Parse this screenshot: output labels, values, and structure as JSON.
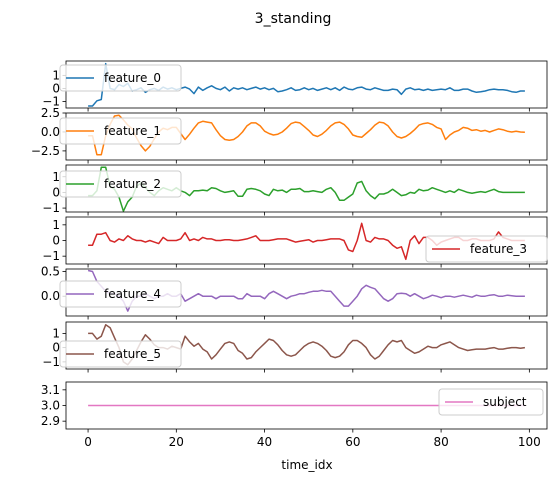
{
  "chart_data": {
    "type": "line",
    "title": "3_standing",
    "xlabel": "time_idx",
    "xlim": [
      -5,
      104
    ],
    "x_ticks": [
      0,
      20,
      40,
      60,
      80,
      100
    ],
    "x_tick_labels": [
      "0",
      "20",
      "40",
      "60",
      "80",
      "100"
    ],
    "subplots": [
      {
        "series": [
          {
            "name": "feature_0",
            "color": "#1f77b4",
            "values": [
              -1.35,
              -1.35,
              -0.95,
              -0.85,
              1.9,
              0.0,
              -0.1,
              0.3,
              0.15,
              0.4,
              -0.2,
              -0.1,
              0.05,
              -0.3,
              -0.1,
              0.0,
              -0.15,
              0.1,
              -0.05,
              0.05,
              -0.1,
              0.0,
              0.1,
              -0.05,
              -0.4,
              0.1,
              -0.15,
              0.05,
              0.2,
              0.0,
              -0.1,
              0.1,
              -0.2,
              0.05,
              -0.05,
              0.05,
              -0.1,
              0.0,
              0.1,
              -0.05,
              0.05,
              -0.1,
              0.0,
              -0.25,
              -0.2,
              -0.1,
              0.05,
              -0.15,
              -0.1,
              0.05,
              -0.1,
              0.0,
              -0.15,
              -0.05,
              0.05,
              -0.1,
              0.05,
              -0.15,
              0.1,
              -0.05,
              -0.1,
              0.05,
              0.1,
              -0.05,
              -0.1,
              0.05,
              -0.05,
              -0.15,
              -0.15,
              -0.05,
              -0.1,
              -0.45,
              -0.05,
              0.05,
              -0.1,
              -0.05,
              -0.15,
              -0.05,
              -0.15,
              -0.1,
              -0.05,
              -0.1,
              0.05,
              -0.15,
              -0.15,
              -0.05,
              -0.05,
              -0.2,
              -0.3,
              -0.25,
              -0.2,
              -0.1,
              -0.05,
              -0.1,
              -0.1,
              -0.15,
              -0.25,
              -0.3,
              -0.2,
              -0.2
            ]
          }
        ],
        "ylim": [
          -1.5,
          2.1
        ],
        "y_ticks": [
          -1,
          0,
          1
        ],
        "y_tick_labels": [
          "−1",
          "0",
          "1"
        ],
        "legend_loc": "upper left"
      },
      {
        "series": [
          {
            "name": "feature_1",
            "color": "#ff7f0e",
            "values": [
              -0.5,
              -0.5,
              -3.0,
              -3.0,
              -0.5,
              1.0,
              2.1,
              2.2,
              1.6,
              0.9,
              0.4,
              -0.8,
              -1.8,
              -2.5,
              -1.9,
              -0.9,
              0.0,
              0.5,
              0.3,
              0.6,
              0.6,
              -0.2,
              -1.0,
              -0.3,
              0.5,
              1.2,
              1.4,
              1.3,
              1.2,
              0.3,
              -0.5,
              -1.0,
              -1.1,
              -1.0,
              -0.6,
              0.0,
              0.8,
              1.2,
              1.2,
              0.8,
              0.1,
              -0.2,
              -0.4,
              -0.3,
              0.0,
              0.5,
              1.1,
              1.3,
              1.2,
              0.7,
              0.2,
              -0.4,
              -0.6,
              -0.3,
              0.2,
              0.8,
              1.2,
              1.3,
              1.0,
              0.4,
              -0.4,
              -0.6,
              -0.7,
              -0.2,
              0.3,
              0.9,
              1.3,
              1.2,
              0.8,
              0.0,
              -0.6,
              -0.8,
              -0.6,
              -0.2,
              0.3,
              0.9,
              1.1,
              1.2,
              1.0,
              0.6,
              0.4,
              -1.0,
              -0.4,
              0.0,
              0.2,
              0.6,
              0.5,
              0.2,
              0.3,
              0.1,
              0.2,
              0.0,
              0.2,
              0.4,
              0.3,
              0.1,
              0.0,
              0.1,
              0.0,
              -0.05
            ]
          }
        ],
        "ylim": [
          -3.7,
          2.5
        ],
        "y_ticks": [
          -2.5,
          0.0,
          2.5
        ],
        "y_tick_labels": [
          "−2.5",
          "0.0",
          "2.5"
        ],
        "legend_loc": "upper left"
      },
      {
        "series": [
          {
            "name": "feature_2",
            "color": "#2ca02c",
            "values": [
              -0.2,
              -0.2,
              0.1,
              1.6,
              1.6,
              0.4,
              0.2,
              -0.3,
              -1.2,
              -0.6,
              -0.3,
              0.4,
              0.6,
              0.3,
              0.0,
              -0.2,
              0.1,
              0.3,
              0.2,
              0.1,
              0.3,
              0.1,
              0.0,
              -0.2,
              0.1,
              0.1,
              0.15,
              0.1,
              0.3,
              0.25,
              0.1,
              0.0,
              0.05,
              0.1,
              -0.25,
              -0.25,
              0.2,
              0.25,
              0.2,
              0.1,
              -0.1,
              -0.2,
              0.2,
              0.1,
              0.15,
              0.0,
              0.2,
              0.2,
              0.25,
              0.05,
              0.05,
              0.1,
              0.05,
              0.0,
              0.2,
              0.3,
              0.0,
              -0.5,
              -0.5,
              -0.3,
              -0.1,
              0.6,
              0.7,
              0.1,
              -0.2,
              -0.4,
              -0.1,
              -0.1,
              0.0,
              0.2,
              0.0,
              -0.2,
              -0.15,
              0.0,
              -0.05,
              0.2,
              0.1,
              0.15,
              0.3,
              0.2,
              0.1,
              0.0,
              0.1,
              0.0,
              0.2,
              0.1,
              0.0,
              -0.05,
              0.0,
              0.05,
              0.0,
              0.1,
              0.2,
              0.05,
              0.0,
              0.0,
              0.0,
              0.0,
              0.0,
              0.0
            ]
          }
        ],
        "ylim": [
          -1.25,
          1.75
        ],
        "y_ticks": [
          -1,
          0,
          1
        ],
        "y_tick_labels": [
          "−1",
          "0",
          "1"
        ],
        "legend_loc": "upper left"
      },
      {
        "series": [
          {
            "name": "feature_3",
            "color": "#d62728",
            "values": [
              -0.3,
              -0.3,
              0.4,
              0.4,
              0.5,
              0.0,
              -0.1,
              0.1,
              0.0,
              0.3,
              0.1,
              0.0,
              0.0,
              -0.1,
              0.0,
              -0.1,
              -0.2,
              0.2,
              0.0,
              0.0,
              0.0,
              0.1,
              0.5,
              0.0,
              0.1,
              0.0,
              0.2,
              0.1,
              0.1,
              0.0,
              0.0,
              0.05,
              0.05,
              0.0,
              0.0,
              0.05,
              0.1,
              0.2,
              0.3,
              0.0,
              0.0,
              0.0,
              0.05,
              0.1,
              0.1,
              0.1,
              0.0,
              -0.1,
              -0.05,
              0.0,
              0.05,
              -0.1,
              0.0,
              0.0,
              0.05,
              0.1,
              0.1,
              0.1,
              0.0,
              -0.6,
              -0.7,
              0.0,
              1.1,
              0.0,
              -0.1,
              0.2,
              0.1,
              0.1,
              0.0,
              -0.3,
              -0.5,
              -0.4,
              -1.2,
              0.0,
              0.3,
              -0.2,
              0.2,
              0.2,
              0.0,
              -0.3,
              -0.1,
              0.0,
              0.1,
              0.2,
              0.2,
              0.0,
              0.0,
              0.1,
              0.1,
              0.0,
              0.0,
              0.0,
              0.1,
              0.55,
              0.2,
              0.1,
              0.0,
              0.0,
              0.0,
              0.0
            ]
          }
        ],
        "ylim": [
          -1.5,
          1.5
        ],
        "y_ticks": [
          -1,
          0,
          1
        ],
        "y_tick_labels": [
          "−1",
          "0",
          "1"
        ],
        "legend_loc": "lower right"
      },
      {
        "series": [
          {
            "name": "feature_4",
            "color": "#9467bd",
            "values": [
              0.52,
              0.5,
              0.3,
              0.2,
              0.1,
              0.05,
              0.05,
              0.0,
              -0.1,
              -0.3,
              -0.1,
              0.0,
              0.0,
              0.05,
              0.0,
              -0.05,
              0.0,
              0.0,
              0.05,
              0.0,
              0.0,
              0.05,
              -0.1,
              -0.05,
              0.0,
              0.05,
              0.0,
              0.0,
              0.0,
              -0.05,
              0.0,
              0.0,
              0.0,
              0.0,
              -0.05,
              -0.05,
              0.05,
              0.0,
              0.0,
              0.0,
              -0.05,
              0.05,
              0.1,
              0.05,
              0.0,
              -0.05,
              0.0,
              0.02,
              0.05,
              0.05,
              0.08,
              0.1,
              0.1,
              0.12,
              0.1,
              0.1,
              0.0,
              -0.1,
              -0.2,
              -0.2,
              -0.1,
              0.0,
              0.15,
              0.22,
              0.18,
              0.15,
              0.05,
              -0.05,
              -0.1,
              -0.05,
              0.05,
              0.06,
              0.05,
              0.0,
              0.05,
              0.0,
              -0.05,
              -0.02,
              0.02,
              0.0,
              -0.03,
              0.0,
              0.0,
              -0.02,
              0.0,
              0.02,
              0.0,
              -0.02,
              0.02,
              0.0,
              0.0,
              0.02,
              0.03,
              0.0,
              0.0,
              0.02,
              0.01,
              0.0,
              0.0,
              0.0
            ]
          }
        ],
        "ylim": [
          -0.4,
          0.55
        ],
        "y_ticks": [
          0.0,
          0.5
        ],
        "y_tick_labels": [
          "0.0",
          "0.5"
        ],
        "legend_loc": "upper left"
      },
      {
        "series": [
          {
            "name": "feature_5",
            "color": "#8c564b",
            "values": [
              1.0,
              1.0,
              0.6,
              0.8,
              1.6,
              1.4,
              0.7,
              0.0,
              -1.0,
              -1.2,
              -0.8,
              -0.2,
              0.4,
              0.9,
              0.6,
              0.2,
              0.0,
              0.0,
              -0.1,
              0.1,
              0.0,
              -0.1,
              0.8,
              0.4,
              0.1,
              0.3,
              -0.1,
              -0.3,
              -0.8,
              -0.5,
              -0.1,
              0.3,
              0.4,
              0.3,
              -0.2,
              -0.4,
              -0.8,
              -0.7,
              -0.3,
              0.0,
              0.3,
              0.6,
              0.5,
              0.2,
              -0.2,
              -0.5,
              -0.6,
              -0.5,
              -0.2,
              0.1,
              0.3,
              0.4,
              0.3,
              0.1,
              -0.2,
              -0.6,
              -0.7,
              -0.6,
              -0.3,
              0.2,
              0.5,
              0.5,
              0.3,
              0.0,
              -0.5,
              -0.8,
              -0.6,
              -0.2,
              0.2,
              0.5,
              0.4,
              0.5,
              0.0,
              -0.2,
              -0.4,
              -0.3,
              -0.1,
              0.1,
              0.0,
              0.0,
              0.2,
              0.3,
              0.4,
              0.2,
              0.0,
              -0.1,
              -0.2,
              -0.15,
              -0.1,
              -0.1,
              -0.1,
              -0.05,
              0.0,
              -0.1,
              -0.1,
              -0.05,
              0.0,
              0.0,
              -0.05,
              0.0
            ]
          }
        ],
        "ylim": [
          -1.5,
          1.8
        ],
        "y_ticks": [
          -1,
          0,
          1
        ],
        "y_tick_labels": [
          "−1",
          "0",
          "1"
        ],
        "legend_loc": "upper left"
      },
      {
        "series": [
          {
            "name": "subject",
            "color": "#e377c2",
            "values": [
              3,
              3,
              3,
              3,
              3,
              3,
              3,
              3,
              3,
              3,
              3,
              3,
              3,
              3,
              3,
              3,
              3,
              3,
              3,
              3,
              3,
              3,
              3,
              3,
              3,
              3,
              3,
              3,
              3,
              3,
              3,
              3,
              3,
              3,
              3,
              3,
              3,
              3,
              3,
              3,
              3,
              3,
              3,
              3,
              3,
              3,
              3,
              3,
              3,
              3,
              3,
              3,
              3,
              3,
              3,
              3,
              3,
              3,
              3,
              3,
              3,
              3,
              3,
              3,
              3,
              3,
              3,
              3,
              3,
              3,
              3,
              3,
              3,
              3,
              3,
              3,
              3,
              3,
              3,
              3,
              3,
              3,
              3,
              3,
              3,
              3,
              3,
              3,
              3,
              3,
              3,
              3,
              3,
              3,
              3,
              3,
              3,
              3,
              3,
              3
            ]
          }
        ],
        "ylim": [
          2.85,
          3.15
        ],
        "y_ticks": [
          2.9,
          3.0,
          3.1
        ],
        "y_tick_labels": [
          "2.9",
          "3.0",
          "3.1"
        ],
        "legend_loc": "upper right"
      }
    ]
  }
}
